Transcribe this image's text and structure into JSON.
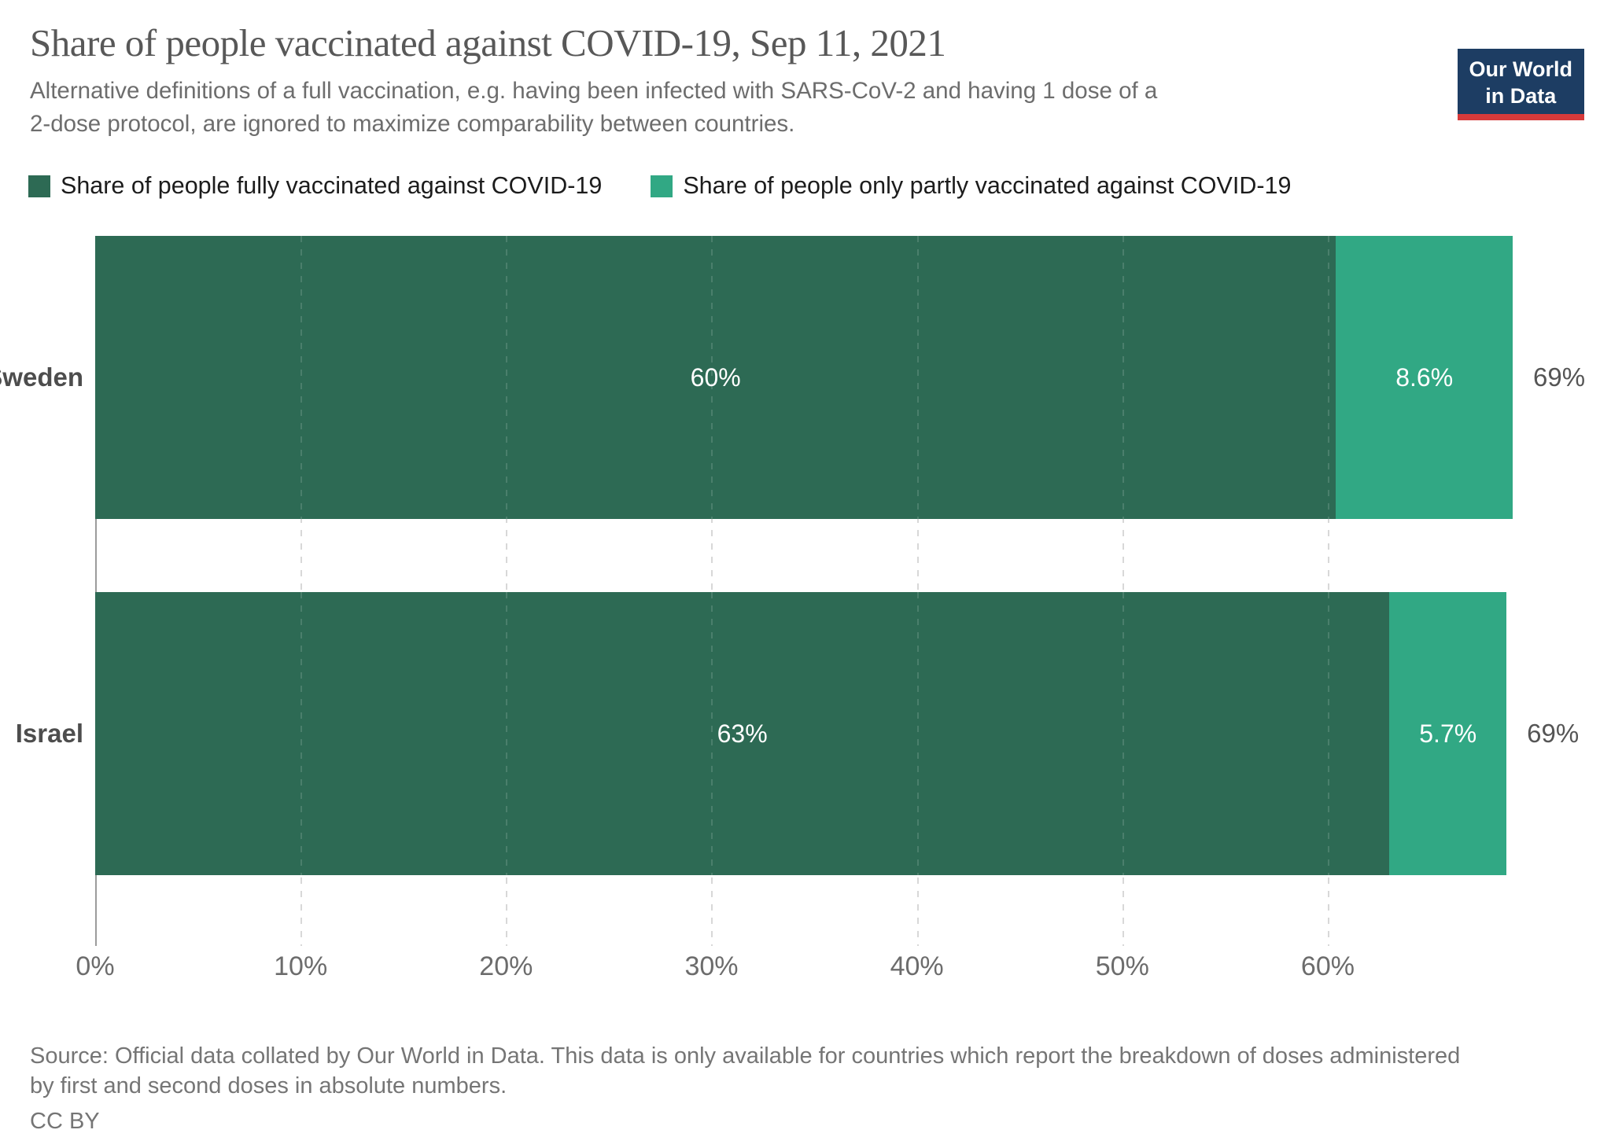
{
  "header": {
    "title": "Share of people vaccinated against COVID-19, Sep 11, 2021",
    "subtitle_line1": "Alternative definitions of a full vaccination, e.g. having been infected with SARS-CoV-2 and having 1 dose of a",
    "subtitle_line2": "2-dose protocol, are ignored to maximize comparability between countries.",
    "logo": {
      "line1": "Our World",
      "line2": "in Data",
      "bg_color": "#1d3d63",
      "accent_color": "#d73a3a"
    }
  },
  "legend": [
    {
      "label": "Share of people fully vaccinated against COVID-19",
      "color": "#2d6a54"
    },
    {
      "label": "Share of people only partly vaccinated against COVID-19",
      "color": "#31a884"
    }
  ],
  "chart_data": {
    "type": "bar",
    "orientation": "horizontal",
    "stacked": true,
    "categories": [
      "Sweden",
      "Israel"
    ],
    "series": [
      {
        "name": "Share of people fully vaccinated against COVID-19",
        "color": "#2d6a54",
        "values": [
          60.4,
          63.0
        ],
        "labels": [
          "60%",
          "63%"
        ]
      },
      {
        "name": "Share of people only partly vaccinated against COVID-19",
        "color": "#31a884",
        "values": [
          8.6,
          5.7
        ],
        "labels": [
          "8.6%",
          "5.7%"
        ]
      }
    ],
    "totals": [
      "69%",
      "69%"
    ],
    "x_axis": {
      "ticks": [
        "0%",
        "10%",
        "20%",
        "30%",
        "40%",
        "50%",
        "60%"
      ],
      "tick_values": [
        0,
        10,
        20,
        30,
        40,
        50,
        60
      ],
      "max": 69,
      "grid": "dashed"
    }
  },
  "footer": {
    "source_line1": "Source: Official data collated by Our World in Data. This data is only available for countries which report the breakdown of doses administered",
    "source_line2": "by first and second doses in absolute numbers.",
    "license": "CC BY"
  }
}
